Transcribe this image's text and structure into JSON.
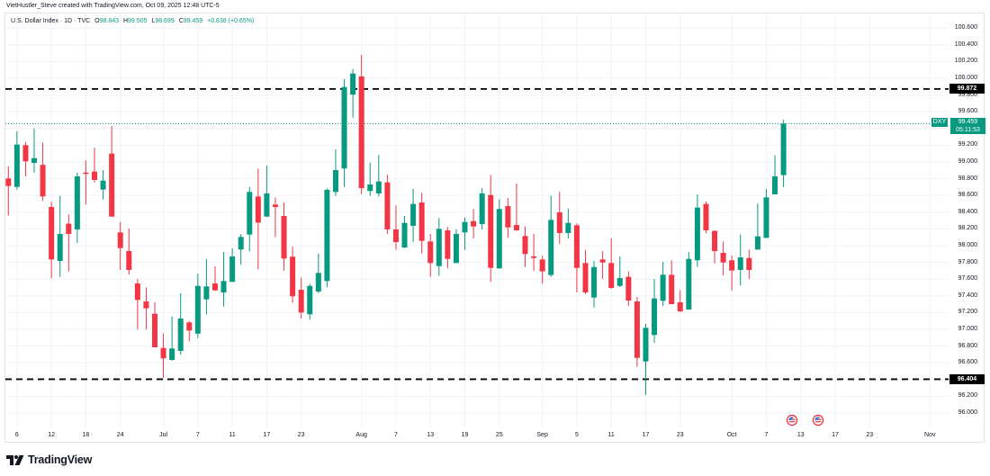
{
  "attribution": "VietHustler_Steve created with TradingView.com, Oct 09, 2025 12:48 UTC-5",
  "legend": {
    "title": "U.S. Dollar Index · 1D · TVC",
    "open_label": "O",
    "open": "98.843",
    "high_label": "H",
    "high": "99.505",
    "low_label": "L",
    "low": "98.699",
    "close_label": "C",
    "close": "99.459",
    "change": "+0.638 (+0.65%)"
  },
  "price_tag": {
    "symbol": "DXY",
    "price": "99.459",
    "countdown": "05:11:53"
  },
  "horizontal_lines": [
    {
      "price": 99.872,
      "label": "99.872"
    },
    {
      "price": 96.404,
      "label": "96.404"
    }
  ],
  "events": [
    {
      "icon": "us-flag-event-icon",
      "index": 91
    },
    {
      "icon": "us-flag-event-icon",
      "index": 94
    }
  ],
  "branding": {
    "logo_text": "TradingView"
  },
  "colors": {
    "up": "#089981",
    "down": "#f23645",
    "text": "#131722",
    "grid": "#f0f3fa",
    "border": "#e0e3eb",
    "level_line": "#000000",
    "event_ring": "#f23645"
  },
  "chart_data": {
    "type": "bar",
    "subtype": "candlestick",
    "title": "U.S. Dollar Index · 1D · TVC",
    "xlabel": "",
    "ylabel": "",
    "ylim": [
      95.8,
      100.7
    ],
    "grid": true,
    "legend_position": "top-left",
    "y_ticks": [
      "100.600",
      "100.400",
      "100.200",
      "100.000",
      "99.800",
      "99.600",
      "99.200",
      "99.000",
      "98.800",
      "98.600",
      "98.400",
      "98.200",
      "98.000",
      "97.800",
      "97.600",
      "97.400",
      "97.200",
      "97.000",
      "96.800",
      "96.600",
      "96.200",
      "96.000"
    ],
    "x_ticks": [
      {
        "label": "6",
        "index": 1
      },
      {
        "label": "12",
        "index": 5
      },
      {
        "label": "18",
        "index": 9
      },
      {
        "label": "24",
        "index": 13
      },
      {
        "label": "Jul",
        "index": 18
      },
      {
        "label": "7",
        "index": 22
      },
      {
        "label": "11",
        "index": 26
      },
      {
        "label": "17",
        "index": 30
      },
      {
        "label": "23",
        "index": 34
      },
      {
        "label": "Aug",
        "index": 41
      },
      {
        "label": "7",
        "index": 45
      },
      {
        "label": "13",
        "index": 49
      },
      {
        "label": "19",
        "index": 53
      },
      {
        "label": "25",
        "index": 57
      },
      {
        "label": "Sep",
        "index": 62
      },
      {
        "label": "5",
        "index": 66
      },
      {
        "label": "11",
        "index": 70
      },
      {
        "label": "17",
        "index": 74
      },
      {
        "label": "23",
        "index": 78
      },
      {
        "label": "Oct",
        "index": 84
      },
      {
        "label": "7",
        "index": 88
      },
      {
        "label": "13",
        "index": 92
      },
      {
        "label": "17",
        "index": 96
      },
      {
        "label": "23",
        "index": 100
      },
      {
        "label": "Nov",
        "index": 107
      }
    ],
    "annotations": [
      {
        "type": "horizontal_line",
        "value": 99.872,
        "style": "dashed"
      },
      {
        "type": "horizontal_line",
        "value": 96.404,
        "style": "dashed"
      },
      {
        "type": "last_price_line",
        "value": 99.459,
        "style": "dotted"
      }
    ],
    "series": [
      {
        "name": "DXY",
        "columns": [
          "date",
          "open",
          "high",
          "low",
          "close"
        ],
        "values": [
          [
            "Jun 5",
            98.803,
            98.946,
            98.362,
            98.713
          ],
          [
            "Jun 6",
            98.702,
            99.366,
            98.67,
            99.208
          ],
          [
            "Jun 9",
            99.201,
            99.24,
            98.828,
            99.008
          ],
          [
            "Jun 10",
            98.989,
            99.401,
            98.874,
            99.046
          ],
          [
            "Jun 11",
            98.965,
            99.233,
            98.534,
            98.588
          ],
          [
            "Jun 12",
            98.462,
            98.524,
            97.61,
            97.835
          ],
          [
            "Jun 13",
            97.817,
            98.595,
            97.627,
            98.14
          ],
          [
            "Jun 16",
            98.262,
            98.373,
            97.692,
            98.14
          ],
          [
            "Jun 17",
            98.194,
            98.874,
            98.032,
            98.828
          ],
          [
            "Jun 18",
            98.874,
            99.018,
            98.491,
            98.857
          ],
          [
            "Jun 19",
            98.885,
            99.169,
            98.756,
            98.785
          ],
          [
            "Jun 20",
            98.67,
            98.903,
            98.552,
            98.777
          ],
          [
            "Jun 23",
            99.1,
            99.43,
            98.347,
            98.347
          ],
          [
            "Jun 24",
            98.158,
            98.283,
            97.71,
            97.971
          ],
          [
            "Jun 25",
            97.935,
            98.204,
            97.656,
            97.71
          ],
          [
            "Jun 26",
            97.548,
            97.602,
            97.0,
            97.352
          ],
          [
            "Jun 27",
            97.333,
            97.502,
            97.0,
            97.251
          ],
          [
            "Jun 30",
            97.186,
            97.323,
            96.785,
            96.785
          ],
          [
            "Jul 1",
            96.777,
            96.949,
            96.419,
            96.653
          ],
          [
            "Jul 2",
            96.634,
            97.154,
            96.627,
            96.771
          ],
          [
            "Jul 3",
            96.742,
            97.43,
            96.699,
            97.129
          ],
          [
            "Jul 4",
            97.083,
            97.1,
            96.857,
            96.986
          ],
          [
            "Jul 7",
            96.949,
            97.667,
            96.896,
            97.519
          ],
          [
            "Jul 8",
            97.358,
            97.842,
            97.18,
            97.513
          ],
          [
            "Jul 9",
            97.548,
            97.753,
            97.459,
            97.466
          ],
          [
            "Jul 10",
            97.441,
            97.925,
            97.272,
            97.577
          ],
          [
            "Jul 11",
            97.567,
            97.968,
            97.567,
            97.871
          ],
          [
            "Jul 14",
            97.954,
            98.14,
            97.771,
            98.104
          ],
          [
            "Jul 15",
            98.133,
            98.702,
            97.932,
            98.642
          ],
          [
            "Jul 16",
            98.588,
            98.921,
            97.717,
            98.276
          ],
          [
            "Jul 17",
            98.347,
            98.957,
            98.347,
            98.624
          ],
          [
            "Jul 18",
            98.491,
            98.577,
            98.104,
            98.462
          ],
          [
            "Jul 21",
            98.355,
            98.516,
            97.702,
            97.846
          ],
          [
            "Jul 22",
            97.868,
            97.989,
            97.315,
            97.395
          ],
          [
            "Jul 23",
            97.473,
            97.62,
            97.13,
            97.201
          ],
          [
            "Jul 24",
            97.18,
            97.545,
            97.115,
            97.519
          ],
          [
            "Jul 25",
            97.452,
            97.907,
            97.43,
            97.674
          ],
          [
            "Jul 28",
            97.577,
            98.685,
            97.502,
            98.667
          ],
          [
            "Jul 29",
            98.642,
            99.151,
            98.595,
            98.903
          ],
          [
            "Jul 30",
            98.922,
            99.993,
            98.702,
            99.896
          ],
          [
            "Jul 31",
            99.806,
            100.111,
            99.527,
            100.057
          ],
          [
            "Aug 1",
            100.022,
            100.28,
            98.616,
            98.688
          ],
          [
            "Aug 4",
            98.653,
            98.989,
            98.595,
            98.731
          ],
          [
            "Aug 5",
            98.624,
            99.083,
            98.588,
            98.767
          ],
          [
            "Aug 6",
            98.756,
            98.846,
            98.14,
            98.194
          ],
          [
            "Aug 7",
            98.194,
            98.481,
            97.95,
            98.043
          ],
          [
            "Aug 8",
            97.978,
            98.355,
            97.971,
            98.272
          ],
          [
            "Aug 11",
            98.237,
            98.677,
            98.043,
            98.498
          ],
          [
            "Aug 12",
            98.516,
            98.631,
            97.907,
            98.057
          ],
          [
            "Aug 13",
            98.05,
            98.14,
            97.627,
            97.792
          ],
          [
            "Aug 14",
            97.756,
            98.33,
            97.638,
            98.201
          ],
          [
            "Aug 15",
            98.183,
            98.222,
            97.728,
            97.842
          ],
          [
            "Aug 18",
            97.792,
            98.194,
            97.792,
            98.14
          ],
          [
            "Aug 19",
            98.158,
            98.337,
            97.95,
            98.283
          ],
          [
            "Aug 20",
            98.294,
            98.438,
            98.086,
            98.229
          ],
          [
            "Aug 21",
            98.258,
            98.688,
            98.194,
            98.624
          ],
          [
            "Aug 22",
            98.605,
            98.846,
            97.567,
            97.734
          ],
          [
            "Aug 25",
            97.728,
            98.552,
            97.728,
            98.438
          ],
          [
            "Aug 26",
            98.473,
            98.57,
            98.093,
            98.218
          ],
          [
            "Aug 27",
            98.247,
            98.742,
            98.176,
            98.183
          ],
          [
            "Aug 28",
            98.115,
            98.229,
            97.745,
            97.9
          ],
          [
            "Aug 29",
            97.871,
            98.14,
            97.699,
            97.853
          ],
          [
            "Sep 1",
            97.835,
            97.878,
            97.548,
            97.692
          ],
          [
            "Sep 2",
            97.649,
            98.595,
            97.627,
            98.308
          ],
          [
            "Sep 3",
            98.398,
            98.642,
            98.022,
            98.151
          ],
          [
            "Sep 4",
            98.151,
            98.444,
            98.086,
            98.272
          ],
          [
            "Sep 5",
            98.244,
            98.265,
            97.441,
            97.734
          ],
          [
            "Sep 8",
            97.792,
            97.949,
            97.423,
            97.441
          ],
          [
            "Sep 9",
            97.38,
            97.817,
            97.262,
            97.745
          ],
          [
            "Sep 10",
            97.835,
            97.935,
            97.602,
            97.799
          ],
          [
            "Sep 11",
            97.792,
            98.086,
            97.484,
            97.495
          ],
          [
            "Sep 12",
            97.519,
            97.871,
            97.505,
            97.613
          ],
          [
            "Sep 15",
            97.627,
            97.692,
            97.28,
            97.344
          ],
          [
            "Sep 16",
            97.333,
            97.387,
            96.552,
            96.659
          ],
          [
            "Sep 17",
            96.616,
            97.065,
            96.215,
            97.018
          ],
          [
            "Sep 18",
            96.932,
            97.602,
            96.839,
            97.369
          ],
          [
            "Sep 19",
            97.341,
            97.806,
            97.28,
            97.652
          ],
          [
            "Sep 22",
            97.652,
            97.825,
            97.301,
            97.301
          ],
          [
            "Sep 23",
            97.323,
            97.466,
            97.208,
            97.215
          ],
          [
            "Sep 24",
            97.237,
            97.925,
            97.237,
            97.842
          ],
          [
            "Sep 25",
            97.825,
            98.613,
            97.745,
            98.455
          ],
          [
            "Sep 26",
            98.498,
            98.527,
            98.147,
            98.183
          ],
          [
            "Sep 29",
            98.176,
            98.183,
            97.788,
            97.935
          ],
          [
            "Sep 30",
            97.914,
            98.05,
            97.645,
            97.799
          ],
          [
            "Oct 1",
            97.825,
            97.882,
            97.466,
            97.702
          ],
          [
            "Oct 2",
            97.71,
            98.133,
            97.523,
            97.86
          ],
          [
            "Oct 3",
            97.853,
            97.953,
            97.602,
            97.71
          ],
          [
            "Oct 6",
            97.953,
            98.505,
            97.953,
            98.111
          ],
          [
            "Oct 7",
            98.093,
            98.677,
            98.093,
            98.577
          ],
          [
            "Oct 8",
            98.613,
            99.079,
            98.613,
            98.828
          ],
          [
            "Oct 9",
            98.843,
            99.505,
            98.699,
            99.459
          ]
        ]
      }
    ]
  }
}
